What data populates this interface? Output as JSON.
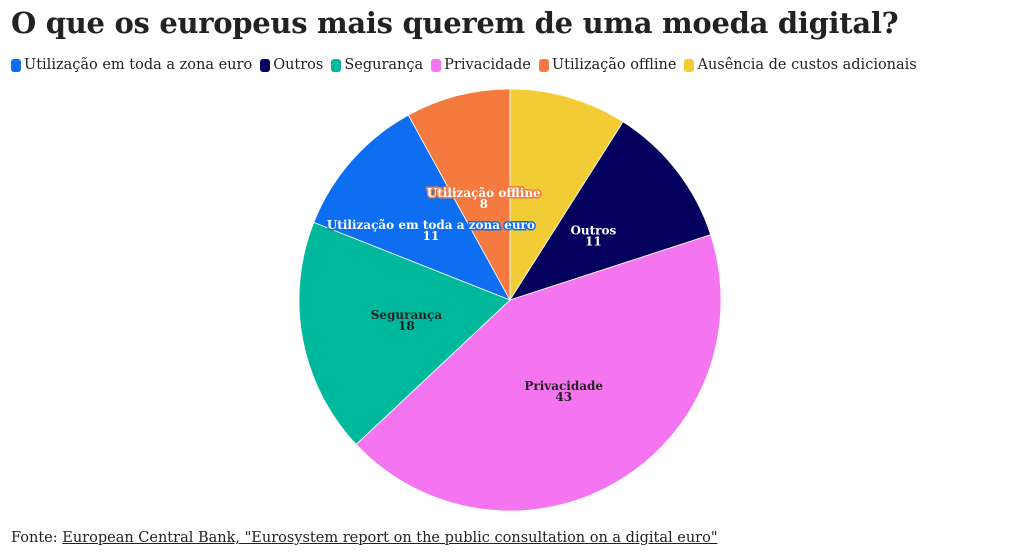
{
  "title": "O que os europeus mais querem de uma moeda digital?",
  "legend": [
    {
      "label": "Utilização em toda a zona euro",
      "color": "#0e6ef2"
    },
    {
      "label": "Outros",
      "color": "#04005e"
    },
    {
      "label": "Segurança",
      "color": "#00b89c"
    },
    {
      "label": "Privacidade",
      "color": "#f575f0"
    },
    {
      "label": "Utilização offline",
      "color": "#f47a3f"
    },
    {
      "label": "Ausência de custos adicionais",
      "color": "#f2cc35"
    }
  ],
  "source": {
    "prefix": "Fonte:",
    "link_text": "European Central Bank, \"Eurosystem report on the public consultation on a digital euro\""
  },
  "chart_data": {
    "type": "pie",
    "start_angle_deg": 0,
    "direction": "clockwise",
    "slices": [
      {
        "label": "Ausência de custos adicionais",
        "value": 9,
        "color": "#f2cc35",
        "show_label": false
      },
      {
        "label": "Outros",
        "value": 11,
        "color": "#04005e",
        "show_label": true,
        "text_color": "#ffffff"
      },
      {
        "label": "Privacidade",
        "value": 43,
        "color": "#f575f0",
        "show_label": true,
        "text_color": "#222222"
      },
      {
        "label": "Segurança",
        "value": 18,
        "color": "#00b89c",
        "show_label": true,
        "text_color": "#222222"
      },
      {
        "label": "Utilização em toda a zona euro",
        "value": 11,
        "color": "#0e6ef2",
        "show_label": true,
        "text_color": "#ffffff"
      },
      {
        "label": "Utilização offline",
        "value": 8,
        "color": "#f47a3f",
        "show_label": true,
        "text_color": "#ffffff"
      }
    ]
  }
}
